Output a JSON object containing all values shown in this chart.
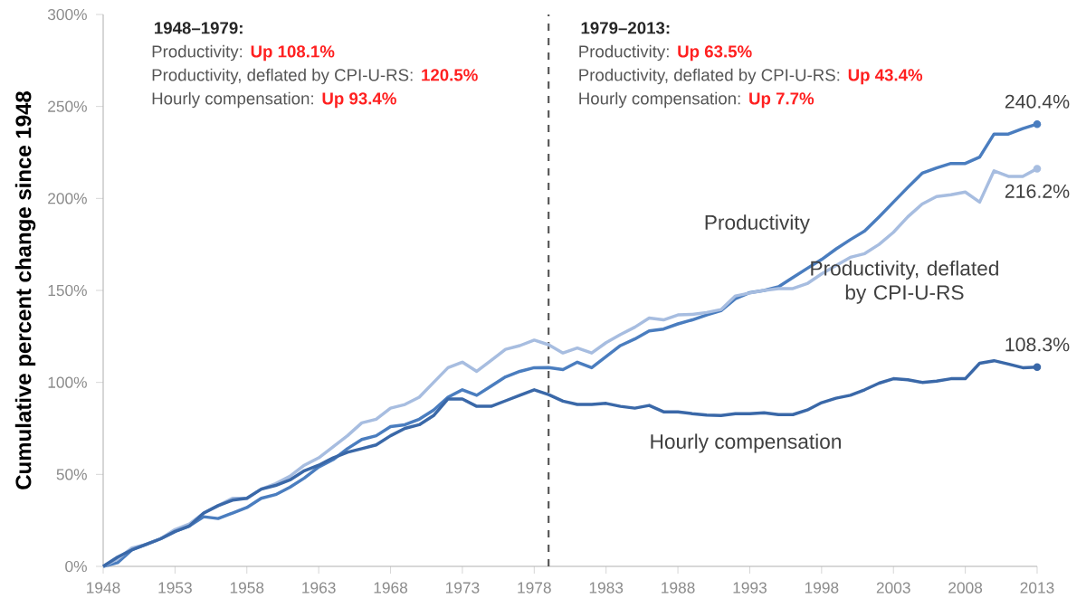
{
  "chart_data": {
    "type": "line",
    "ylabel": "Cumulative percent change since 1948",
    "x": [
      1948,
      1949,
      1950,
      1951,
      1952,
      1953,
      1954,
      1955,
      1956,
      1957,
      1958,
      1959,
      1960,
      1961,
      1962,
      1963,
      1964,
      1965,
      1966,
      1967,
      1968,
      1969,
      1970,
      1971,
      1972,
      1973,
      1974,
      1975,
      1976,
      1977,
      1978,
      1979,
      1980,
      1981,
      1982,
      1983,
      1984,
      1985,
      1986,
      1987,
      1988,
      1989,
      1990,
      1991,
      1992,
      1993,
      1994,
      1995,
      1996,
      1997,
      1998,
      1999,
      2000,
      2001,
      2002,
      2003,
      2004,
      2005,
      2006,
      2007,
      2008,
      2009,
      2010,
      2011,
      2012,
      2013
    ],
    "series": [
      {
        "name": "Productivity",
        "color": "#4a7dbf",
        "values": [
          0,
          2,
          9,
          12,
          15,
          19,
          22,
          27,
          26,
          29,
          32,
          37,
          39,
          43,
          48,
          54,
          58,
          64,
          69,
          71,
          76,
          77,
          80,
          85,
          92,
          96,
          93,
          98,
          103,
          106,
          108,
          108.1,
          107,
          111,
          108,
          114,
          120,
          123.6,
          128,
          129,
          131.8,
          134,
          136.7,
          139,
          145.5,
          148.8,
          150,
          152,
          157,
          162,
          166.8,
          172.5,
          177.6,
          182.3,
          190,
          198,
          206,
          213.7,
          216.6,
          219,
          219,
          222.5,
          235,
          235,
          238,
          240.4
        ],
        "value_labels": [
          null,
          null,
          null,
          null,
          null,
          null,
          null,
          null,
          null,
          null,
          null,
          null,
          null,
          null,
          null,
          null,
          null,
          null,
          null,
          null,
          null,
          null,
          null,
          null,
          null,
          null,
          null,
          null,
          null,
          null,
          null,
          null,
          null,
          null,
          null,
          null,
          null,
          null,
          null,
          null,
          null,
          null,
          null,
          null,
          null,
          null,
          null,
          null,
          null,
          null,
          null,
          null,
          null,
          null,
          null,
          null,
          null,
          null,
          null,
          null,
          null,
          null,
          null,
          null,
          null,
          "240.4%"
        ]
      },
      {
        "name": "Productivity, deflated by CPI-U-RS",
        "color": "#a7bde0",
        "values": [
          0,
          4,
          10,
          12,
          15,
          20,
          23,
          29,
          33,
          37,
          37,
          42,
          45,
          49,
          55,
          59,
          65,
          71,
          78,
          80,
          86,
          88,
          92,
          100,
          108,
          111,
          106,
          112,
          118,
          120,
          123,
          120.5,
          116,
          118.7,
          116,
          121.6,
          126,
          130,
          135,
          134,
          136.7,
          137,
          138,
          139.6,
          147,
          148.6,
          150,
          151,
          151,
          153.7,
          159,
          163.5,
          168,
          170,
          175,
          181.6,
          190,
          197,
          201,
          202,
          203.5,
          198,
          215,
          212,
          212,
          216.2
        ],
        "value_labels": [
          null,
          null,
          null,
          null,
          null,
          null,
          null,
          null,
          null,
          null,
          null,
          null,
          null,
          null,
          null,
          null,
          null,
          null,
          null,
          null,
          null,
          null,
          null,
          null,
          null,
          null,
          null,
          null,
          null,
          null,
          null,
          null,
          null,
          null,
          null,
          null,
          null,
          null,
          null,
          null,
          null,
          null,
          null,
          null,
          null,
          null,
          null,
          null,
          null,
          null,
          null,
          null,
          null,
          null,
          null,
          null,
          null,
          null,
          null,
          null,
          null,
          null,
          null,
          null,
          null,
          "216.2%"
        ]
      },
      {
        "name": "Hourly compensation",
        "color": "#3a68a8",
        "values": [
          0,
          5,
          9,
          12,
          15,
          19,
          22,
          29,
          33,
          36,
          37,
          42,
          44,
          47,
          52,
          55,
          59,
          62,
          64,
          66,
          71,
          75,
          77,
          82,
          91,
          91,
          87,
          87,
          90,
          93,
          96,
          93.4,
          89.8,
          88,
          88,
          88.6,
          87,
          86,
          87.5,
          84,
          84,
          83,
          82.3,
          82,
          83,
          83,
          83.5,
          82.5,
          82.5,
          85,
          89,
          91.4,
          93,
          96,
          99.6,
          102,
          101.4,
          100,
          100.7,
          102,
          102,
          110.4,
          111.8,
          110,
          108,
          108.3
        ],
        "value_labels": [
          null,
          null,
          null,
          null,
          null,
          null,
          null,
          null,
          null,
          null,
          null,
          null,
          null,
          null,
          null,
          null,
          null,
          null,
          null,
          null,
          null,
          null,
          null,
          null,
          null,
          null,
          null,
          null,
          null,
          null,
          null,
          null,
          null,
          null,
          null,
          null,
          null,
          null,
          null,
          null,
          null,
          null,
          null,
          null,
          null,
          null,
          null,
          null,
          null,
          null,
          null,
          null,
          null,
          null,
          null,
          null,
          null,
          null,
          null,
          null,
          null,
          null,
          null,
          null,
          null,
          "108.3%"
        ]
      }
    ],
    "xlim": [
      1948,
      2013
    ],
    "xticks": [
      1948,
      1953,
      1958,
      1963,
      1968,
      1973,
      1978,
      1983,
      1988,
      1993,
      1998,
      2003,
      2008,
      2013
    ],
    "ylim": [
      0,
      300
    ],
    "yticks": [
      {
        "value": 0,
        "label": "0%"
      },
      {
        "value": 50,
        "label": "50%"
      },
      {
        "value": 100,
        "label": "100%"
      },
      {
        "value": 150,
        "label": "150%"
      },
      {
        "value": 200,
        "label": "200%"
      },
      {
        "value": 250,
        "label": "250%"
      },
      {
        "value": 300,
        "label": "300%"
      }
    ],
    "ref_lines": [
      {
        "axis": "x",
        "value": 1979,
        "line_style": "dashed",
        "color": "#555555"
      }
    ],
    "annotations": [
      "1948–1979:",
      "Productivity:",
      "Up 108.1%",
      "Productivity, deflated by CPI-U-RS:",
      "120.5%",
      "Hourly compensation:",
      "Up  93.4%",
      "1979–2013:",
      "Productivity:",
      "Up 63.5%",
      "Productivity, deflated by CPI-U-RS:",
      "Up 43.4%",
      "Hourly compensation:",
      "Up 7.7%"
    ],
    "grid": false,
    "legend": false,
    "marker": "none",
    "line_style": "solid"
  }
}
